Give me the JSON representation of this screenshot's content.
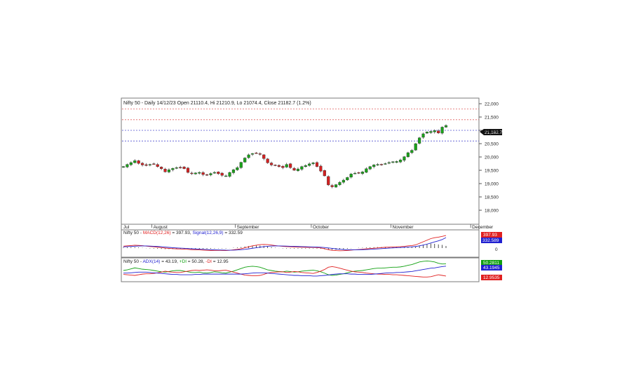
{
  "chart_data": [
    {
      "type": "candlestick",
      "title": "Nifty 50 - Daily 14/12/23 Open 21110.4, Hi 21210.9, Lo 21074.4, Close 21182.7 (1.2%)",
      "ylim": [
        17500,
        22000
      ],
      "y_ticks": [
        {
          "value": 22000,
          "label": "22,000"
        },
        {
          "value": 21500,
          "label": "21,500"
        },
        {
          "value": 21000,
          "label": "21,000"
        },
        {
          "value": 20500,
          "label": "20,500"
        },
        {
          "value": 20000,
          "label": "20,000"
        },
        {
          "value": 19500,
          "label": "19,500"
        },
        {
          "value": 19000,
          "label": "19,000"
        },
        {
          "value": 18500,
          "label": "18,500"
        },
        {
          "value": 18000,
          "label": "18,000"
        }
      ],
      "last_price_label": "21,182.7",
      "last_price": 21182.7,
      "months": [
        {
          "label": "Jul",
          "bar": 0
        },
        {
          "label": "August",
          "bar": 8
        },
        {
          "label": "September",
          "bar": 30
        },
        {
          "label": "October",
          "bar": 50
        },
        {
          "label": "November",
          "bar": 71
        },
        {
          "label": "December",
          "bar": 92
        }
      ],
      "hlines": [
        {
          "value": 21800,
          "color": "#e06060"
        },
        {
          "value": 21400,
          "color": "#e06060"
        },
        {
          "value": 21000,
          "color": "#5050d0"
        },
        {
          "value": 20600,
          "color": "#5050d0"
        }
      ],
      "closes": [
        19640,
        19720,
        19790,
        19860,
        19760,
        19700,
        19680,
        19720,
        19740,
        19640,
        19560,
        19440,
        19520,
        19570,
        19600,
        19610,
        19560,
        19420,
        19380,
        19400,
        19420,
        19340,
        19320,
        19380,
        19420,
        19370,
        19310,
        19290,
        19420,
        19520,
        19600,
        19800,
        19960,
        20080,
        20130,
        20150,
        20100,
        19940,
        19780,
        19700,
        19680,
        19640,
        19600,
        19720,
        19600,
        19500,
        19550,
        19640,
        19680,
        19740,
        19780,
        19640,
        19470,
        19290,
        18950,
        18880,
        18960,
        19050,
        19130,
        19230,
        19360,
        19390,
        19400,
        19440,
        19560,
        19640,
        19700,
        19720,
        19720,
        19750,
        19790,
        19820,
        19830,
        19890,
        20010,
        20160,
        20250,
        20500,
        20720,
        20870,
        20940,
        20960,
        20990,
        20900,
        21120,
        21182.7
      ]
    },
    {
      "type": "line",
      "title": "Nifty 50 - MACD(12,26) = 397.93, Signal(12,26,9) = 332.59",
      "title_parts": {
        "lead": "Nifty 50 - ",
        "macd": "MACD(12,26)",
        "macd_value": " = 397.93, ",
        "signal": "Signal(12,26,9)",
        "signal_value": " = 332.59"
      },
      "zero_label": "0",
      "macd_label": "397.93",
      "signal_label": "332.589",
      "series": [
        {
          "name": "MACD(12,26)",
          "color": "#e02020",
          "values": [
            60,
            70,
            80,
            90,
            85,
            75,
            62,
            50,
            40,
            28,
            15,
            0,
            -10,
            -18,
            -25,
            -30,
            -35,
            -40,
            -50,
            -55,
            -58,
            -65,
            -70,
            -75,
            -72,
            -70,
            -75,
            -80,
            -70,
            -55,
            -40,
            -20,
            10,
            40,
            70,
            90,
            110,
            115,
            110,
            95,
            80,
            65,
            55,
            45,
            40,
            35,
            30,
            28,
            25,
            22,
            20,
            15,
            5,
            -20,
            -50,
            -70,
            -80,
            -85,
            -82,
            -75,
            -65,
            -55,
            -45,
            -35,
            -25,
            -15,
            -5,
            5,
            15,
            25,
            30,
            35,
            40,
            45,
            55,
            70,
            80,
            100,
            150,
            200,
            250,
            300,
            330,
            345,
            370,
            397.93
          ]
        },
        {
          "name": "Signal(12,26,9)",
          "color": "#2020d0",
          "values": [
            40,
            45,
            52,
            60,
            65,
            68,
            67,
            63,
            58,
            50,
            42,
            32,
            22,
            13,
            5,
            -2,
            -8,
            -15,
            -22,
            -28,
            -34,
            -40,
            -46,
            -52,
            -56,
            -59,
            -62,
            -66,
            -67,
            -65,
            -60,
            -52,
            -40,
            -25,
            -8,
            10,
            30,
            45,
            58,
            65,
            68,
            68,
            66,
            62,
            58,
            54,
            50,
            46,
            42,
            38,
            35,
            31,
            26,
            17,
            5,
            -10,
            -25,
            -38,
            -47,
            -52,
            -55,
            -55,
            -53,
            -50,
            -45,
            -40,
            -33,
            -26,
            -18,
            -10,
            -2,
            5,
            12,
            18,
            25,
            33,
            41,
            50,
            70,
            95,
            125,
            160,
            195,
            230,
            270,
            332.59
          ]
        }
      ],
      "histogram": [
        20,
        25,
        28,
        30,
        20,
        7,
        -5,
        -13,
        -18,
        -22,
        -27,
        -32,
        -32,
        -31,
        -30,
        -28,
        -27,
        -25,
        -28,
        -27,
        -24,
        -25,
        -24,
        -23,
        -16,
        -11,
        -13,
        -14,
        -3,
        10,
        20,
        32,
        50,
        65,
        78,
        80,
        80,
        70,
        52,
        30,
        12,
        -3,
        -11,
        -17,
        -18,
        -19,
        -20,
        -18,
        -17,
        -16,
        -15,
        -16,
        -21,
        -37,
        -55,
        -60,
        -55,
        -47,
        -35,
        -23,
        -10,
        0,
        8,
        15,
        20,
        25,
        28,
        31,
        33,
        35,
        32,
        30,
        28,
        27,
        30,
        37,
        39,
        50,
        80,
        105,
        125,
        140,
        135,
        115,
        100,
        65.34
      ]
    },
    {
      "type": "line",
      "title": "Nifty 50 - ADX(14) = 43.19, +DI = 50.28, -DI = 12.95",
      "title_parts": {
        "lead": "Nifty 50 - ",
        "adx": "ADX(14)",
        "adx_value": " = 43.19, ",
        "pdi": "+DI",
        "pdi_value": " = 50.28, ",
        "mdi": "-DI",
        "mdi_value": " = 12.95"
      },
      "pdi_label": "50.2811",
      "adx_label": "43.1945",
      "mdi_label": "12.9535",
      "series": [
        {
          "name": "+DI",
          "color": "#10a010",
          "values": [
            30,
            32,
            35,
            38,
            36,
            34,
            33,
            32,
            30,
            28,
            26,
            25,
            27,
            29,
            30,
            30,
            28,
            26,
            24,
            24,
            25,
            23,
            22,
            24,
            26,
            25,
            23,
            22,
            25,
            28,
            32,
            36,
            40,
            42,
            43,
            42,
            40,
            36,
            32,
            30,
            28,
            27,
            26,
            28,
            27,
            25,
            26,
            28,
            29,
            30,
            31,
            29,
            26,
            22,
            17,
            15,
            16,
            18,
            20,
            23,
            26,
            28,
            29,
            30,
            32,
            34,
            36,
            37,
            37,
            38,
            39,
            40,
            40,
            41,
            43,
            46,
            48,
            52,
            56,
            58,
            59,
            58,
            56,
            52,
            50,
            50.28
          ]
        },
        {
          "name": "-DI",
          "color": "#e02020",
          "values": [
            18,
            17,
            16,
            15,
            17,
            19,
            20,
            20,
            21,
            23,
            25,
            28,
            26,
            25,
            24,
            24,
            26,
            28,
            30,
            31,
            30,
            31,
            32,
            31,
            29,
            29,
            30,
            31,
            28,
            25,
            22,
            19,
            16,
            15,
            14,
            14,
            15,
            18,
            22,
            24,
            25,
            26,
            26,
            24,
            25,
            27,
            26,
            24,
            23,
            22,
            21,
            24,
            28,
            33,
            40,
            42,
            40,
            37,
            34,
            31,
            28,
            26,
            25,
            24,
            22,
            21,
            20,
            19,
            19,
            18,
            18,
            17,
            17,
            16,
            15,
            14,
            13,
            12,
            11,
            10,
            10,
            11,
            14,
            17,
            15,
            12.95
          ]
        },
        {
          "name": "ADX(14)",
          "color": "#2020d0",
          "values": [
            22,
            22,
            23,
            24,
            25,
            25,
            25,
            24,
            23,
            22,
            21,
            20,
            19,
            18,
            18,
            17,
            17,
            17,
            17,
            18,
            18,
            19,
            19,
            19,
            19,
            19,
            19,
            19,
            19,
            19,
            19,
            19,
            20,
            21,
            22,
            23,
            23,
            23,
            22,
            21,
            20,
            19,
            18,
            17,
            16,
            15,
            15,
            14,
            14,
            14,
            13,
            13,
            14,
            15,
            16,
            18,
            19,
            20,
            20,
            20,
            19,
            19,
            18,
            18,
            18,
            18,
            19,
            20,
            21,
            22,
            23,
            23,
            24,
            24,
            25,
            26,
            27,
            29,
            31,
            33,
            35,
            37,
            38,
            40,
            42,
            43.19
          ]
        }
      ]
    }
  ]
}
